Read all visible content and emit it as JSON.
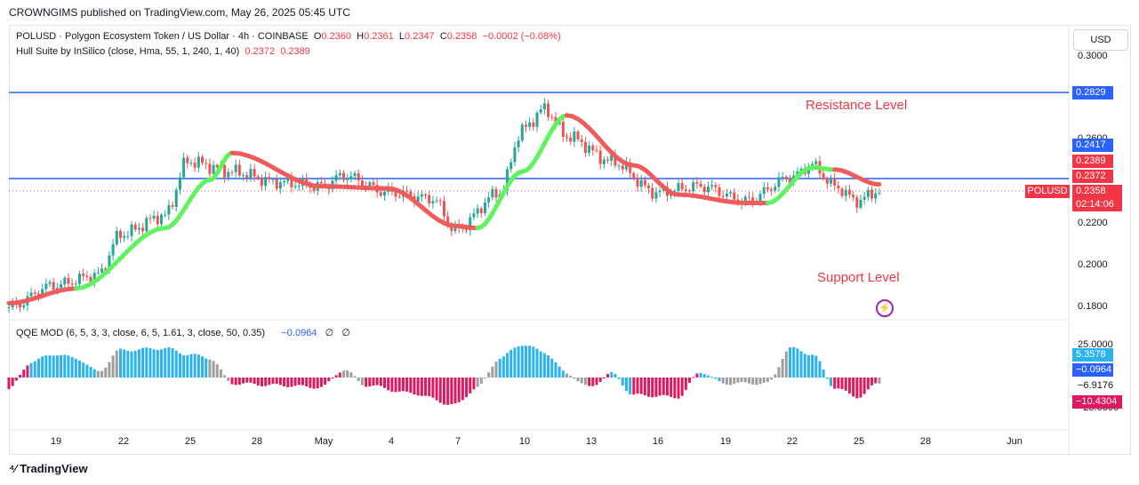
{
  "publisher": "CROWNGIMS published on TradingView.com, May 26, 2025 05:45 UTC",
  "legend": {
    "symbol": "POLUSD · Polygon Ecosystem Token / US Dollar · 4h · COINBASE",
    "o_label": "O",
    "o": "0.2360",
    "h_label": "H",
    "h": "0.2361",
    "l_label": "L",
    "l": "0.2347",
    "c_label": "C",
    "c": "0.2358",
    "change": "−0.0002 (−0.08%)",
    "hull_name": "Hull Suite by InSilico (close, Hma, 55, 1, 240, 1, 40)",
    "hull_v1": "0.2372",
    "hull_v2": "0.2389",
    "qqe_name": "QQE MOD (6, 5, 3, 3, close, 6, 5, 1.61, 3, close, 50, 0.35)",
    "qqe_value": "−0.0964",
    "qqe_sym1": "∅",
    "qqe_sym2": "∅"
  },
  "currency_button": "USD",
  "annotations": {
    "resistance": "Resistance Level",
    "support": "Support Level"
  },
  "price_axis": [
    "0.3000",
    "0.2600",
    "0.2200",
    "0.2000",
    "0.1800"
  ],
  "osc_axis": [
    "25.0000",
    "−6.9176",
    "−25.0000"
  ],
  "price_tags": {
    "resistance": "0.2829",
    "support": "0.2417",
    "hull_top": "0.2389",
    "hull_bottom": "0.2372",
    "symbol": "POLUSD",
    "last": "0.2358",
    "countdown": "02:14:06",
    "osc_a": "5.3578",
    "osc_b": "−0.0964",
    "osc_c": "−10.4304"
  },
  "time_axis": [
    "19",
    "22",
    "25",
    "28",
    "May",
    "4",
    "7",
    "10",
    "13",
    "16",
    "19",
    "22",
    "25",
    "28",
    "Jun"
  ],
  "footer": "TradingView",
  "colors": {
    "up": "#26a69a",
    "down": "#ef5350",
    "hull_up": "#5ff35f",
    "hull_down": "#f05c5c",
    "level": "#2962ff",
    "qqe_blue": "#2bb3f0",
    "qqe_red": "#e0185f",
    "qqe_gray": "#9e9e9e"
  },
  "chart_data": [
    {
      "type": "candlestick",
      "title": "POLUSD · Polygon Ecosystem Token / US Dollar · 4h · COINBASE",
      "ylim": [
        0.175,
        0.305
      ],
      "y_unit": "USD",
      "horizontal_levels": [
        {
          "value": 0.2829,
          "label": "Resistance Level"
        },
        {
          "value": 0.2417,
          "label": "Support Level"
        }
      ],
      "close_anchors": [
        {
          "date": "2025-04-17",
          "value": 0.18
        },
        {
          "date": "2025-04-19",
          "value": 0.1905
        },
        {
          "date": "2025-04-21",
          "value": 0.1955
        },
        {
          "date": "2025-04-22",
          "value": 0.215
        },
        {
          "date": "2025-04-24",
          "value": 0.224
        },
        {
          "date": "2025-04-25",
          "value": 0.25
        },
        {
          "date": "2025-04-27",
          "value": 0.245
        },
        {
          "date": "2025-04-29",
          "value": 0.24
        },
        {
          "date": "2025-05-01",
          "value": 0.238
        },
        {
          "date": "2025-05-02",
          "value": 0.243
        },
        {
          "date": "2025-05-04",
          "value": 0.235
        },
        {
          "date": "2025-05-06",
          "value": 0.232
        },
        {
          "date": "2025-05-07",
          "value": 0.217
        },
        {
          "date": "2025-05-09",
          "value": 0.235
        },
        {
          "date": "2025-05-10",
          "value": 0.265
        },
        {
          "date": "2025-05-11",
          "value": 0.275
        },
        {
          "date": "2025-05-12",
          "value": 0.262
        },
        {
          "date": "2025-05-14",
          "value": 0.25
        },
        {
          "date": "2025-05-16",
          "value": 0.235
        },
        {
          "date": "2025-05-18",
          "value": 0.238
        },
        {
          "date": "2025-05-20",
          "value": 0.231
        },
        {
          "date": "2025-05-22",
          "value": 0.242
        },
        {
          "date": "2025-05-23",
          "value": 0.248
        },
        {
          "date": "2025-05-24",
          "value": 0.238
        },
        {
          "date": "2025-05-25",
          "value": 0.231
        },
        {
          "date": "2025-05-26",
          "value": 0.2358
        }
      ],
      "hull_anchors": [
        {
          "date": "2025-04-17",
          "value": 0.182,
          "trend": "down"
        },
        {
          "date": "2025-04-20",
          "value": 0.189,
          "trend": "up"
        },
        {
          "date": "2025-04-24",
          "value": 0.218,
          "trend": "up"
        },
        {
          "date": "2025-04-26",
          "value": 0.241,
          "trend": "up"
        },
        {
          "date": "2025-04-27",
          "value": 0.254,
          "trend": "down"
        },
        {
          "date": "2025-05-01",
          "value": 0.238,
          "trend": "down"
        },
        {
          "date": "2025-05-04",
          "value": 0.237,
          "trend": "down"
        },
        {
          "date": "2025-05-07",
          "value": 0.219,
          "trend": "down"
        },
        {
          "date": "2025-05-08",
          "value": 0.218,
          "trend": "up"
        },
        {
          "date": "2025-05-10",
          "value": 0.245,
          "trend": "up"
        },
        {
          "date": "2025-05-12",
          "value": 0.272,
          "trend": "down"
        },
        {
          "date": "2025-05-15",
          "value": 0.248,
          "trend": "down"
        },
        {
          "date": "2025-05-17",
          "value": 0.234,
          "trend": "down"
        },
        {
          "date": "2025-05-20",
          "value": 0.23,
          "trend": "down"
        },
        {
          "date": "2025-05-21",
          "value": 0.23,
          "trend": "up"
        },
        {
          "date": "2025-05-23",
          "value": 0.247,
          "trend": "up"
        },
        {
          "date": "2025-05-24",
          "value": 0.246,
          "trend": "down"
        },
        {
          "date": "2025-05-26",
          "value": 0.2389,
          "trend": "down"
        }
      ]
    },
    {
      "type": "bar",
      "title": "QQE MOD (6, 5, 3, 3, close, 6, 5, 1.61, 3, close, 50, 0.35)",
      "ylim": [
        -30,
        30
      ],
      "histogram_anchors": [
        {
          "date": "2025-04-17",
          "value": -6,
          "color": "red"
        },
        {
          "date": "2025-04-18",
          "value": 8,
          "color": "blue"
        },
        {
          "date": "2025-04-19",
          "value": 12,
          "color": "blue"
        },
        {
          "date": "2025-04-20",
          "value": 10,
          "color": "blue"
        },
        {
          "date": "2025-04-21",
          "value": 3,
          "color": "gray"
        },
        {
          "date": "2025-04-22",
          "value": 14,
          "color": "blue"
        },
        {
          "date": "2025-04-24",
          "value": 15,
          "color": "blue"
        },
        {
          "date": "2025-04-25",
          "value": 12,
          "color": "blue"
        },
        {
          "date": "2025-04-26",
          "value": 10,
          "color": "gray"
        },
        {
          "date": "2025-04-27",
          "value": -3,
          "color": "red"
        },
        {
          "date": "2025-04-29",
          "value": -4,
          "color": "red"
        },
        {
          "date": "2025-05-01",
          "value": -5,
          "color": "red"
        },
        {
          "date": "2025-05-02",
          "value": 4,
          "color": "gray"
        },
        {
          "date": "2025-05-03",
          "value": -4,
          "color": "red"
        },
        {
          "date": "2025-05-05",
          "value": -8,
          "color": "red"
        },
        {
          "date": "2025-05-07",
          "value": -14,
          "color": "red"
        },
        {
          "date": "2025-05-08",
          "value": -5,
          "color": "gray"
        },
        {
          "date": "2025-05-09",
          "value": 10,
          "color": "blue"
        },
        {
          "date": "2025-05-10",
          "value": 17,
          "color": "blue"
        },
        {
          "date": "2025-05-11",
          "value": 13,
          "color": "blue"
        },
        {
          "date": "2025-05-12",
          "value": 2,
          "color": "gray"
        },
        {
          "date": "2025-05-13",
          "value": -5,
          "color": "red"
        },
        {
          "date": "2025-05-14",
          "value": 2,
          "color": "blue"
        },
        {
          "date": "2025-05-15",
          "value": -9,
          "color": "red"
        },
        {
          "date": "2025-05-17",
          "value": -10,
          "color": "red"
        },
        {
          "date": "2025-05-18",
          "value": 3,
          "color": "blue"
        },
        {
          "date": "2025-05-19",
          "value": -3,
          "color": "gray"
        },
        {
          "date": "2025-05-21",
          "value": -3,
          "color": "gray"
        },
        {
          "date": "2025-05-22",
          "value": 15,
          "color": "blue"
        },
        {
          "date": "2025-05-23",
          "value": 12,
          "color": "blue"
        },
        {
          "date": "2025-05-24",
          "value": -5,
          "color": "red"
        },
        {
          "date": "2025-05-25",
          "value": -10,
          "color": "red"
        },
        {
          "date": "2025-05-26",
          "value": -3,
          "color": "gray"
        }
      ]
    }
  ]
}
